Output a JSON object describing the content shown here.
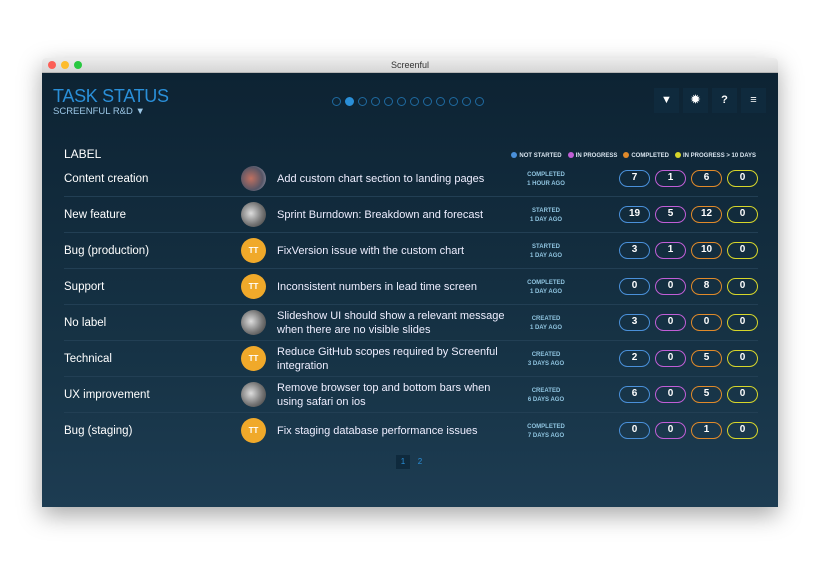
{
  "window": {
    "title": "Screenful"
  },
  "header": {
    "title": "TASK STATUS",
    "subtitle": "SCREENFUL R&D",
    "subtitle_icon": "filter-icon",
    "page_dots": 12,
    "active_dot": 2,
    "tools": [
      {
        "name": "filter-icon",
        "glyph": "▼"
      },
      {
        "name": "gear-icon",
        "glyph": "✹"
      },
      {
        "name": "help-icon",
        "glyph": "?"
      },
      {
        "name": "menu-icon",
        "glyph": "≡"
      }
    ]
  },
  "table": {
    "label_header": "LABEL",
    "legend": [
      {
        "label": "NOT STARTED",
        "color": "#4a90d9"
      },
      {
        "label": "IN PROGRESS",
        "color": "#c05ed6"
      },
      {
        "label": "COMPLETED",
        "color": "#e08a2a"
      },
      {
        "label": "IN PROGRESS > 10 DAYS",
        "color": "#d6d62a"
      }
    ],
    "rows": [
      {
        "label": "Content creation",
        "avatar": "photo",
        "task": "Add custom chart section to landing pages",
        "status": "COMPLETED",
        "time": "1 HOUR AGO",
        "counts": [
          7,
          1,
          6,
          0
        ]
      },
      {
        "label": "New feature",
        "avatar": "photo",
        "task": "Sprint Burndown: Breakdown and forecast",
        "status": "STARTED",
        "time": "1 DAY AGO",
        "counts": [
          19,
          5,
          12,
          0
        ]
      },
      {
        "label": "Bug (production)",
        "avatar": "TT",
        "task": "FixVersion issue with the custom chart",
        "status": "STARTED",
        "time": "1 DAY AGO",
        "counts": [
          3,
          1,
          10,
          0
        ]
      },
      {
        "label": "Support",
        "avatar": "TT",
        "task": "Inconsistent numbers in lead time screen",
        "status": "COMPLETED",
        "time": "1 DAY AGO",
        "counts": [
          0,
          0,
          8,
          0
        ]
      },
      {
        "label": "No label",
        "avatar": "photo",
        "task": "Slideshow UI should show a relevant message when there are no visible slides",
        "status": "CREATED",
        "time": "1 DAY AGO",
        "counts": [
          3,
          0,
          0,
          0
        ]
      },
      {
        "label": "Technical",
        "avatar": "TT",
        "task": "Reduce GitHub scopes required by Screenful integration",
        "status": "CREATED",
        "time": "3 DAYS AGO",
        "counts": [
          2,
          0,
          5,
          0
        ]
      },
      {
        "label": "UX improvement",
        "avatar": "photo",
        "task": "Remove browser top and bottom bars when using safari on ios",
        "status": "CREATED",
        "time": "6 DAYS AGO",
        "counts": [
          6,
          0,
          5,
          0
        ]
      },
      {
        "label": "Bug (staging)",
        "avatar": "TT",
        "task": "Fix staging database performance issues",
        "status": "COMPLETED",
        "time": "7 DAYS AGO",
        "counts": [
          0,
          0,
          1,
          0
        ]
      }
    ]
  },
  "pagination": {
    "pages": [
      "1",
      "2"
    ],
    "current": "1"
  }
}
